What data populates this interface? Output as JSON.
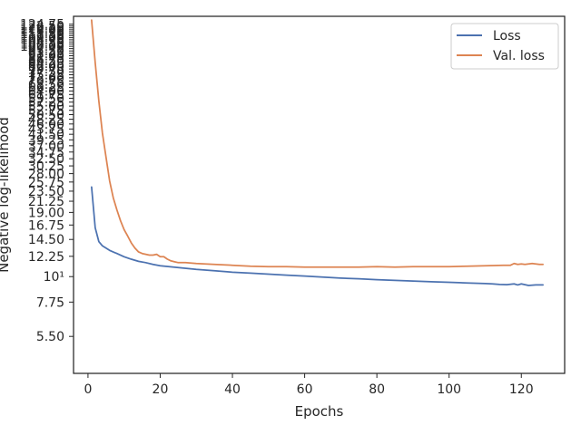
{
  "chart_data": {
    "type": "line",
    "xlabel": "Epochs",
    "ylabel": "Negative log-likelihood",
    "xlim": [
      -4,
      132
    ],
    "ylim": [
      3.8,
      135
    ],
    "y_scale": "log",
    "x_ticks": [
      0,
      20,
      40,
      60,
      80,
      100,
      120
    ],
    "x_tick_labels": [
      "0",
      "20",
      "40",
      "60",
      "80",
      "100",
      "120"
    ],
    "y_ticks": [
      5.5,
      7.75,
      10,
      12.25,
      14.5,
      16.75,
      19.0,
      21.25,
      23.5,
      25.75,
      28.0,
      30.25,
      32.5,
      34.75,
      37.0,
      39.25,
      41.5,
      43.75,
      46.0,
      48.25,
      50.5,
      52.75,
      55.0,
      57.25,
      59.5,
      61.75,
      64.0,
      66.25,
      68.5,
      70.75,
      73.0,
      75.25,
      77.5,
      79.75,
      82.0,
      84.25,
      86.5,
      88.75,
      91.0,
      93.25,
      95.5,
      97.75,
      100.0,
      102.25,
      104.5,
      106.75,
      109.0,
      111.25,
      113.5,
      115.75,
      118.0,
      120.25,
      122.5,
      124.75
    ],
    "y_tick_labels": [
      "5.50",
      "7.75",
      "10¹",
      "12.25",
      "14.50",
      "16.75",
      "19.00",
      "21.25",
      "23.50",
      "25.75",
      "28.00",
      "30.25",
      "32.50",
      "34.75",
      "37.00",
      "39.25",
      "41.50",
      "43.75",
      "46.00",
      "48.25",
      "50.50",
      "52.75",
      "55.00",
      "57.25",
      "59.50",
      "61.75",
      "64.00",
      "66.25",
      "68.50",
      "70.75",
      "73.00",
      "75.25",
      "77.50",
      "79.75",
      "82.00",
      "84.25",
      "86.50",
      "88.75",
      "91.00",
      "93.25",
      "95.50",
      "97.75",
      "100.00",
      "102.25",
      "104.50",
      "106.75",
      "109.00",
      "111.25",
      "113.50",
      "115.75",
      "118.00",
      "120.25",
      "122.50",
      "124.75"
    ],
    "legend": {
      "position": "top-right",
      "entries": [
        "Loss",
        "Val. loss"
      ]
    },
    "grid": false,
    "series": [
      {
        "name": "Loss",
        "color": "#4c72b0",
        "x": [
          1,
          2,
          3,
          4,
          5,
          6,
          8,
          10,
          12,
          14,
          16,
          18,
          20,
          25,
          30,
          35,
          40,
          45,
          50,
          55,
          60,
          65,
          70,
          75,
          80,
          85,
          90,
          95,
          100,
          105,
          110,
          112,
          114,
          116,
          118,
          119,
          120,
          122,
          124,
          126
        ],
        "y": [
          24.5,
          16.3,
          14.2,
          13.6,
          13.3,
          13.0,
          12.6,
          12.2,
          11.9,
          11.65,
          11.5,
          11.3,
          11.15,
          10.95,
          10.75,
          10.6,
          10.45,
          10.35,
          10.25,
          10.15,
          10.05,
          9.95,
          9.85,
          9.78,
          9.7,
          9.63,
          9.57,
          9.5,
          9.45,
          9.38,
          9.33,
          9.3,
          9.25,
          9.22,
          9.3,
          9.2,
          9.3,
          9.15,
          9.2,
          9.2
        ]
      },
      {
        "name": "Val. loss",
        "color": "#dd8452",
        "x": [
          1,
          2,
          3,
          4,
          5,
          6,
          7,
          8,
          9,
          10,
          11,
          12,
          13,
          14,
          15,
          16,
          17,
          18,
          19,
          20,
          21,
          22,
          23,
          24,
          25,
          27,
          30,
          35,
          40,
          45,
          50,
          55,
          60,
          65,
          70,
          75,
          80,
          85,
          90,
          95,
          100,
          105,
          110,
          115,
          117,
          118,
          119,
          120,
          121,
          122,
          123,
          124,
          125,
          126
        ],
        "y": [
          130,
          85,
          58,
          42,
          33,
          26,
          22,
          19.5,
          17.5,
          16,
          15,
          14,
          13.3,
          12.8,
          12.6,
          12.5,
          12.4,
          12.4,
          12.5,
          12.2,
          12.2,
          11.9,
          11.7,
          11.6,
          11.5,
          11.5,
          11.4,
          11.3,
          11.2,
          11.1,
          11.05,
          11.05,
          11.0,
          11.0,
          11.0,
          11.0,
          11.05,
          11.0,
          11.05,
          11.05,
          11.05,
          11.1,
          11.15,
          11.2,
          11.2,
          11.4,
          11.3,
          11.35,
          11.3,
          11.35,
          11.4,
          11.35,
          11.3,
          11.3
        ]
      }
    ]
  }
}
